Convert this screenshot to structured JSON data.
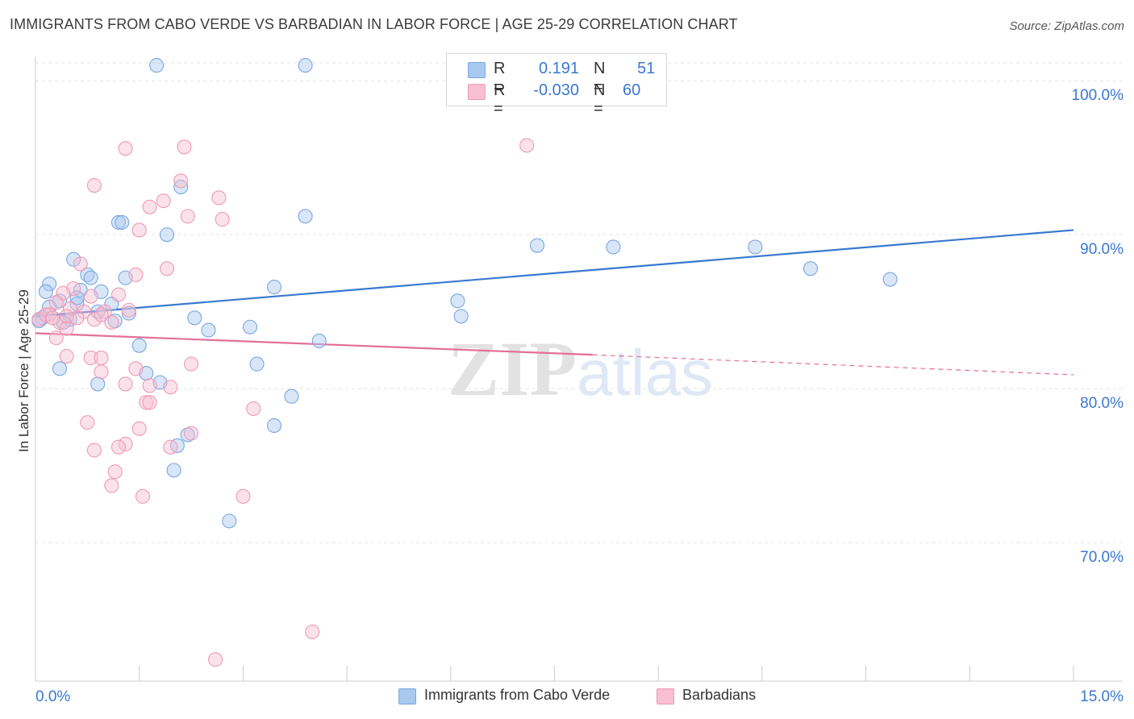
{
  "title": "IMMIGRANTS FROM CABO VERDE VS BARBADIAN IN LABOR FORCE | AGE 25-29 CORRELATION CHART",
  "source": "Source: ZipAtlas.com",
  "watermark": {
    "zip": "ZIP",
    "atlas": "atlas"
  },
  "legend": {
    "r_label": "R =",
    "n_label": "N =",
    "series1": {
      "r": "0.191",
      "n": "51",
      "color": "#a9c8f0",
      "border": "#7aa7e0"
    },
    "series2": {
      "r": "-0.030",
      "n": "60",
      "color": "#f7bfd1",
      "border": "#ee9ab5"
    }
  },
  "bottom_legend": {
    "series1": "Immigrants from Cabo Verde",
    "series2": "Barbadians"
  },
  "chart_data": {
    "type": "scatter",
    "title": "IMMIGRANTS FROM CABO VERDE VS BARBADIAN IN LABOR FORCE | AGE 25-29 CORRELATION CHART",
    "xlabel": "",
    "ylabel": "In Labor Force | Age 25-29",
    "xlim": [
      0,
      15
    ],
    "ylim": [
      61,
      102
    ],
    "x_tick_labels": [
      "0.0%",
      "15.0%"
    ],
    "y_ticks": [
      70,
      80,
      90,
      100
    ],
    "y_tick_labels": [
      "70.0%",
      "80.0%",
      "90.0%",
      "100.0%"
    ],
    "grid": true,
    "legend_position": "top-center",
    "series": [
      {
        "name": "Immigrants from Cabo Verde",
        "color": "#6fa0e0",
        "trend": {
          "x": [
            0,
            15
          ],
          "y": [
            84.7,
            90.3
          ],
          "style": "solid",
          "color": "#3a78d0"
        },
        "points": [
          [
            1.75,
            101
          ],
          [
            3.9,
            101
          ],
          [
            2.1,
            93.1
          ],
          [
            1.2,
            90.8
          ],
          [
            1.25,
            90.8
          ],
          [
            3.9,
            91.2
          ],
          [
            1.9,
            90
          ],
          [
            0.55,
            88.4
          ],
          [
            0.75,
            87.4
          ],
          [
            0.8,
            87.2
          ],
          [
            1.3,
            87.2
          ],
          [
            0.2,
            86.8
          ],
          [
            0.15,
            86.3
          ],
          [
            0.65,
            86.4
          ],
          [
            0.95,
            86.3
          ],
          [
            0.35,
            85.7
          ],
          [
            3.45,
            86.6
          ],
          [
            6.1,
            85.7
          ],
          [
            0.2,
            85.3
          ],
          [
            0.6,
            85.5
          ],
          [
            1.1,
            85.5
          ],
          [
            0.9,
            85.0
          ],
          [
            1.35,
            84.9
          ],
          [
            0.1,
            84.6
          ],
          [
            0.5,
            84.5
          ],
          [
            0.4,
            84.3
          ],
          [
            1.15,
            84.4
          ],
          [
            2.3,
            84.6
          ],
          [
            0.05,
            84.4
          ],
          [
            3.1,
            84.0
          ],
          [
            2.5,
            83.8
          ],
          [
            6.15,
            84.7
          ],
          [
            4.1,
            83.1
          ],
          [
            1.5,
            82.8
          ],
          [
            0.35,
            81.3
          ],
          [
            1.6,
            81.0
          ],
          [
            3.2,
            81.6
          ],
          [
            0.9,
            80.3
          ],
          [
            1.8,
            80.4
          ],
          [
            3.7,
            79.5
          ],
          [
            7.25,
            89.3
          ],
          [
            8.35,
            89.2
          ],
          [
            10.4,
            89.2
          ],
          [
            11.2,
            87.8
          ],
          [
            12.35,
            87.1
          ],
          [
            3.45,
            77.6
          ],
          [
            2.2,
            77.0
          ],
          [
            2.05,
            76.3
          ],
          [
            2.0,
            74.7
          ],
          [
            2.8,
            71.4
          ],
          [
            0.6,
            85.9
          ]
        ]
      },
      {
        "name": "Barbadians",
        "color": "#f2a6c0",
        "trend": {
          "x": [
            0,
            8.05
          ],
          "y": [
            83.6,
            82.2
          ],
          "style": "solid",
          "dash_to": [
            15,
            80.9
          ],
          "color": "#e36f97"
        },
        "points": [
          [
            1.3,
            95.6
          ],
          [
            2.15,
            95.7
          ],
          [
            7.1,
            95.8
          ],
          [
            2.1,
            93.5
          ],
          [
            0.85,
            93.2
          ],
          [
            2.65,
            92.4
          ],
          [
            1.85,
            92.2
          ],
          [
            1.65,
            91.8
          ],
          [
            2.2,
            91.2
          ],
          [
            2.7,
            91.0
          ],
          [
            1.5,
            90.3
          ],
          [
            0.65,
            88.1
          ],
          [
            1.9,
            87.8
          ],
          [
            1.45,
            87.4
          ],
          [
            0.55,
            86.5
          ],
          [
            0.4,
            86.2
          ],
          [
            0.8,
            86.0
          ],
          [
            1.2,
            86.1
          ],
          [
            0.3,
            85.6
          ],
          [
            0.5,
            85.2
          ],
          [
            0.7,
            85.0
          ],
          [
            1.0,
            85.0
          ],
          [
            1.35,
            85.1
          ],
          [
            0.2,
            84.8
          ],
          [
            0.6,
            84.6
          ],
          [
            0.35,
            84.3
          ],
          [
            0.85,
            84.5
          ],
          [
            1.1,
            84.3
          ],
          [
            0.05,
            84.5
          ],
          [
            0.15,
            84.8
          ],
          [
            0.25,
            84.6
          ],
          [
            0.45,
            84.7
          ],
          [
            0.95,
            84.8
          ],
          [
            0.3,
            83.3
          ],
          [
            0.45,
            83.9
          ],
          [
            0.45,
            82.1
          ],
          [
            0.8,
            82.0
          ],
          [
            0.95,
            82.0
          ],
          [
            1.45,
            81.3
          ],
          [
            2.25,
            81.6
          ],
          [
            0.95,
            81.1
          ],
          [
            1.3,
            80.3
          ],
          [
            1.65,
            80.2
          ],
          [
            1.95,
            80.1
          ],
          [
            1.6,
            79.1
          ],
          [
            1.65,
            79.1
          ],
          [
            3.15,
            78.7
          ],
          [
            0.75,
            77.8
          ],
          [
            1.5,
            77.4
          ],
          [
            2.25,
            77.1
          ],
          [
            1.3,
            76.4
          ],
          [
            1.2,
            76.2
          ],
          [
            1.95,
            76.2
          ],
          [
            0.85,
            76.0
          ],
          [
            1.15,
            74.6
          ],
          [
            1.1,
            73.7
          ],
          [
            1.55,
            73.0
          ],
          [
            3.0,
            73.0
          ],
          [
            4.0,
            64.2
          ],
          [
            2.6,
            62.4
          ]
        ]
      }
    ]
  }
}
